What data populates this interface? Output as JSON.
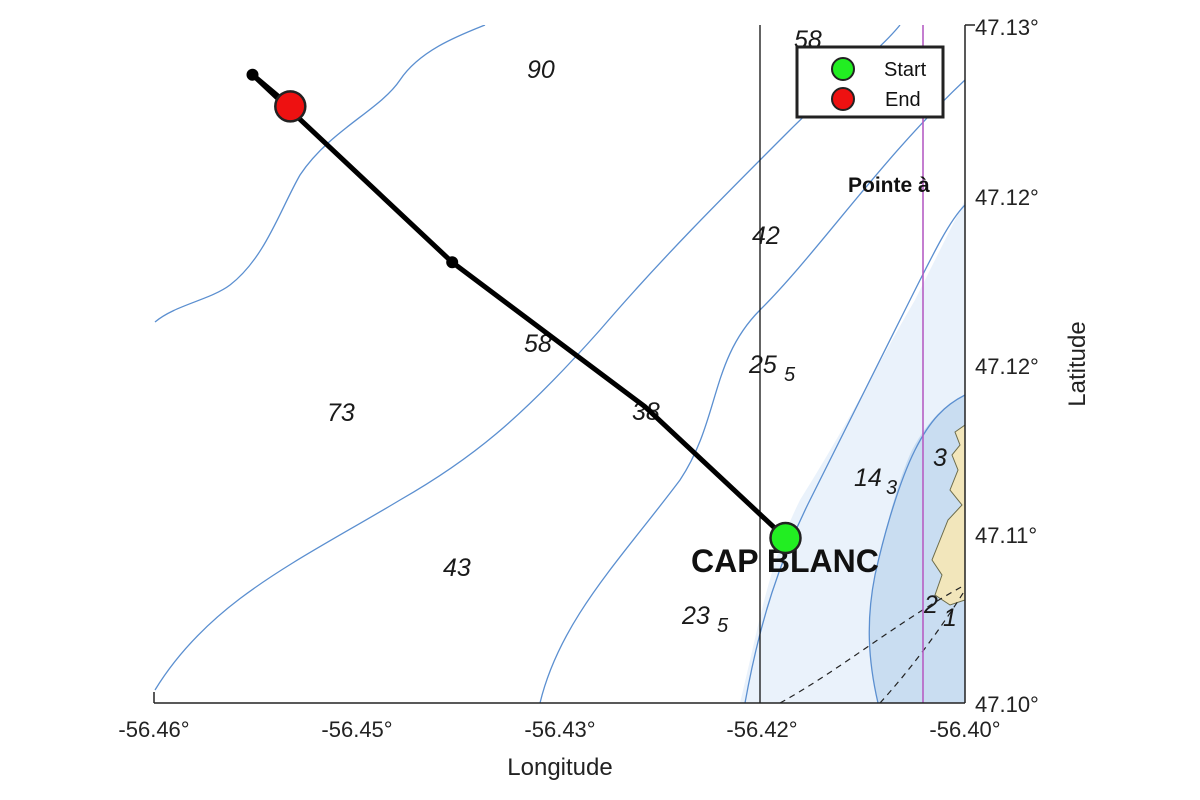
{
  "map": {
    "x_axis": {
      "title": "Longitude",
      "ticks": [
        "-56.46°",
        "-56.45°",
        "-56.43°",
        "-56.42°",
        "-56.40°"
      ]
    },
    "y_axis": {
      "title": "Latitude",
      "ticks": [
        "47.13°",
        "47.12°",
        "47.12°",
        "47.11°",
        "47.10°"
      ]
    },
    "legend": {
      "start_label": "Start",
      "end_label": "End",
      "start_color": "#22ee22",
      "end_color": "#ee1111"
    },
    "place_names": {
      "cape": "CAP BLANC",
      "point": "Pointe à"
    },
    "soundings": {
      "s90": "90",
      "s58_top": "58",
      "s42": "42",
      "s58_mid": "58",
      "s25": "25",
      "s25_sub": "5",
      "s73": "73",
      "s38": "38",
      "s14": "14",
      "s14_sub": "3",
      "s3": "3",
      "s43": "43",
      "s23": "23",
      "s23_sub": "5",
      "s2": "2",
      "s1": "1"
    },
    "colors": {
      "track": "#000000",
      "contour": "#5b8fd0",
      "shallow_water": "#eaf2fb",
      "very_shallow_water": "#c9ddf1",
      "land": "#f2e6bb",
      "boundary_line": "#b65ec4"
    }
  },
  "chart_data": {
    "type": "map-track",
    "x_label": "Longitude",
    "y_label": "Latitude",
    "track_points": [
      {
        "lon": -56.4133,
        "lat": 47.1073
      },
      {
        "lon": -56.416,
        "lat": 47.1088
      },
      {
        "lon": -56.4237,
        "lat": 47.1131
      },
      {
        "lon": -56.438,
        "lat": 47.1195
      },
      {
        "lon": -56.4528,
        "lat": 47.1278
      },
      {
        "lon": -56.45,
        "lat": 47.1264
      }
    ],
    "start": {
      "lon": -56.4133,
      "lat": 47.1073,
      "label": "Start"
    },
    "end": {
      "lon": -56.45,
      "lat": 47.1264,
      "label": "End"
    }
  }
}
